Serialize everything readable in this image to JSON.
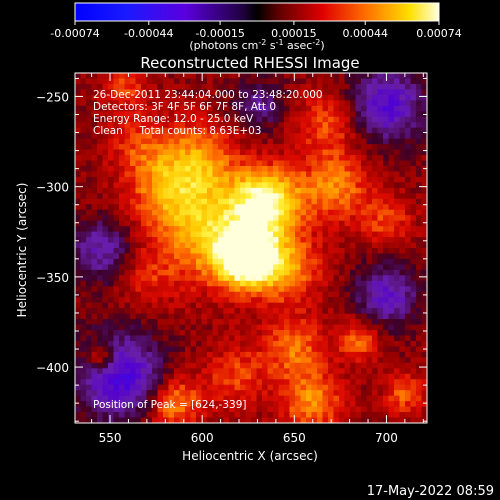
{
  "chart_data": {
    "type": "heatmap",
    "title": "Reconstructed RHESSI Image",
    "xlabel": "Heliocentric X (arcsec)",
    "ylabel": "Heliocentric Y (arcsec)",
    "xlim": [
      531,
      722
    ],
    "ylim": [
      -431,
      -237
    ],
    "x_ticks": [
      550,
      600,
      650,
      700
    ],
    "y_ticks": [
      -250,
      -300,
      -350,
      -400
    ],
    "colorbar": {
      "range": [
        -0.00074,
        0.00074
      ],
      "tick_values": [
        -0.00074,
        -0.00044,
        -0.00015,
        0.00015,
        0.00044,
        0.00074
      ],
      "tick_labels": [
        "-0.00074",
        "-0.00044",
        "-0.00015",
        "0.00015",
        "0.00044",
        "0.00074"
      ],
      "unit_parts": [
        "(photons cm",
        "-2",
        " s",
        "-1",
        " asec",
        "-2",
        ")"
      ]
    },
    "annotations": [
      "26-Dec-2011 23:44:04.000 to 23:48:20.000",
      "Detectors: 3F 4F 5F 6F 7F 8F, Att 0",
      "Energy Range: 12.0 - 25.0 keV",
      "Clean     Total counts: 8.63E+03"
    ],
    "peak_label": "Position of Peak = [624,-339]",
    "peak": {
      "x": 624,
      "y": -339
    },
    "hot_spots": [
      {
        "x": 624,
        "y": -339,
        "amp": 1.0,
        "sigma": 11
      },
      {
        "x": 635,
        "y": -308,
        "amp": 0.8,
        "sigma": 13
      },
      {
        "x": 605,
        "y": -325,
        "amp": 0.55,
        "sigma": 20
      },
      {
        "x": 582,
        "y": -300,
        "amp": 0.45,
        "sigma": 16
      },
      {
        "x": 600,
        "y": -282,
        "amp": 0.35,
        "sigma": 14
      },
      {
        "x": 645,
        "y": -345,
        "amp": 0.45,
        "sigma": 14
      },
      {
        "x": 672,
        "y": -300,
        "amp": 0.45,
        "sigma": 13
      },
      {
        "x": 668,
        "y": -265,
        "amp": 0.35,
        "sigma": 12
      },
      {
        "x": 565,
        "y": -275,
        "amp": 0.25,
        "sigma": 12
      },
      {
        "x": 545,
        "y": -395,
        "amp": 0.5,
        "sigma": 6
      },
      {
        "x": 650,
        "y": -390,
        "amp": 0.4,
        "sigma": 12
      },
      {
        "x": 585,
        "y": -420,
        "amp": 0.5,
        "sigma": 10
      },
      {
        "x": 660,
        "y": -420,
        "amp": 0.45,
        "sigma": 12
      },
      {
        "x": 700,
        "y": -320,
        "amp": 0.3,
        "sigma": 10
      },
      {
        "x": 685,
        "y": -385,
        "amp": 0.4,
        "sigma": 8
      },
      {
        "x": 570,
        "y": -350,
        "amp": 0.2,
        "sigma": 12
      },
      {
        "x": 710,
        "y": -415,
        "amp": 0.35,
        "sigma": 8
      },
      {
        "x": 618,
        "y": -405,
        "amp": 0.3,
        "sigma": 12
      },
      {
        "x": 558,
        "y": -245,
        "amp": 0.3,
        "sigma": 8
      }
    ],
    "cold_spots": [
      {
        "x": 555,
        "y": -405,
        "amp": 0.7,
        "sigma": 16
      },
      {
        "x": 700,
        "y": -255,
        "amp": 0.6,
        "sigma": 14
      },
      {
        "x": 700,
        "y": -360,
        "amp": 0.5,
        "sigma": 12
      },
      {
        "x": 545,
        "y": -335,
        "amp": 0.45,
        "sigma": 12
      },
      {
        "x": 630,
        "y": -255,
        "amp": 0.35,
        "sigma": 10
      }
    ],
    "background": 0.15,
    "grid": false,
    "legend": "colorbar-top"
  },
  "footer": {
    "timestamp": "17-May-2022 08:59"
  }
}
